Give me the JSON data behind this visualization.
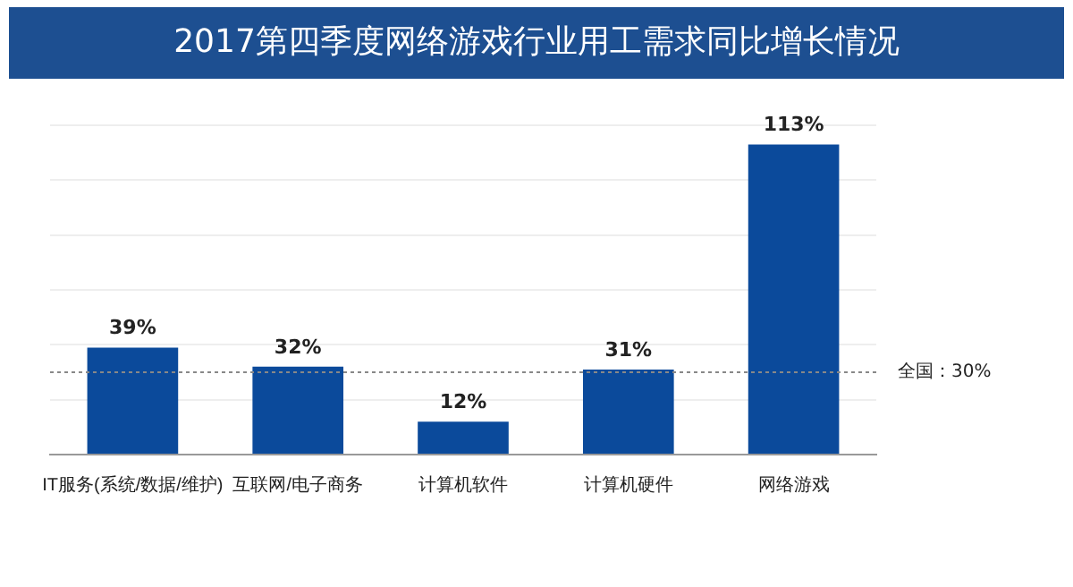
{
  "chart_data": {
    "type": "bar",
    "title": "2017第四季度网络游戏行业用工需求同比增长情况",
    "categories": [
      "IT服务(系统/数据/维护)",
      "互联网/电子商务",
      "计算机软件",
      "计算机硬件",
      "网络游戏"
    ],
    "values": [
      39,
      32,
      12,
      31,
      113
    ],
    "color": "#0b4a9b",
    "value_labels": [
      "39%",
      "32%",
      "12%",
      "31%",
      "113%"
    ],
    "ylim": [
      0,
      120
    ],
    "yticks": [
      {
        "value": 0,
        "label": null
      },
      {
        "value": 20,
        "label": null
      },
      {
        "value": 40,
        "label": null
      },
      {
        "value": 60,
        "label": null
      },
      {
        "value": 80,
        "label": null
      },
      {
        "value": 100,
        "label": null
      },
      {
        "value": 120,
        "label": null
      }
    ],
    "tick_labels": "x",
    "grid": "y",
    "legend": false,
    "ref_lines": [
      {
        "axis": "y",
        "value": 30,
        "label": "全国：30%",
        "color": "#888888",
        "line_style": "dotted"
      }
    ]
  }
}
